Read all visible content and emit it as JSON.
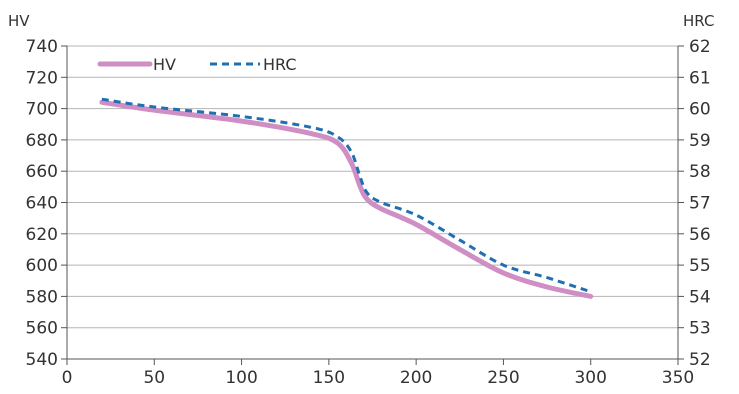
{
  "chart_data": {
    "type": "line",
    "title": "",
    "xlabel": "",
    "ylabel_left": "HV",
    "ylabel_right": "HRC",
    "xlim": [
      0,
      350
    ],
    "x_ticks": [
      "0",
      "50",
      "100",
      "150",
      "200",
      "250",
      "300",
      "350"
    ],
    "ylim_left": [
      540,
      740
    ],
    "y_ticks_left": [
      "540",
      "560",
      "580",
      "600",
      "620",
      "640",
      "660",
      "680",
      "700",
      "720",
      "740"
    ],
    "ylim_right": [
      52,
      62
    ],
    "y_ticks_right": [
      "52",
      "53",
      "54",
      "55",
      "56",
      "57",
      "58",
      "59",
      "60",
      "61",
      "62"
    ],
    "grid": "horizontal",
    "legend_position": "top-left",
    "series": [
      {
        "name": "HV",
        "axis": "left",
        "color": "#cf8ec4",
        "style": "solid",
        "x": [
          20,
          50,
          100,
          140,
          155,
          163,
          168,
          172,
          180,
          200,
          225,
          250,
          275,
          300
        ],
        "y": [
          704,
          699,
          692,
          684,
          678,
          665,
          650,
          642,
          636,
          626,
          610,
          595,
          586,
          580
        ]
      },
      {
        "name": "HRC",
        "axis": "right",
        "color": "#1f6fb2",
        "style": "dashed",
        "x": [
          20,
          50,
          100,
          140,
          155,
          163,
          168,
          172,
          180,
          200,
          225,
          250,
          275,
          300
        ],
        "y": [
          60.3,
          60.05,
          59.75,
          59.4,
          59.1,
          58.6,
          57.8,
          57.3,
          57.0,
          56.6,
          55.8,
          55.0,
          54.6,
          54.15
        ]
      }
    ]
  }
}
